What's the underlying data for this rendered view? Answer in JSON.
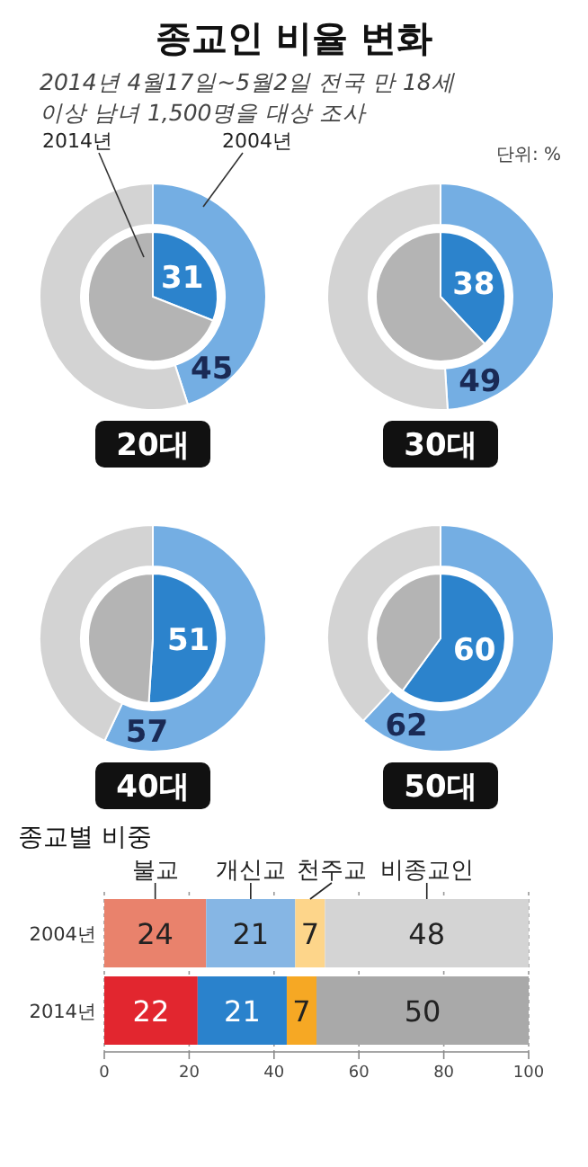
{
  "chart_data": [
    {
      "type": "other",
      "title": "종교인 비율 변화",
      "subtitle": "2014년 4월17일~5월2일 전국 만 18세 이상 남녀 1,500명을 대상 조사",
      "annotations": [
        "단위: %"
      ]
    },
    {
      "type": "donut",
      "title": "20대",
      "categories": [
        null,
        null
      ],
      "series": [
        {
          "name": "2004년",
          "colors": [
            "#74aee3",
            "#d3d3d3"
          ],
          "values": [
            45,
            55
          ],
          "value_labels": [
            "45",
            null
          ]
        },
        {
          "name": "2014년",
          "colors": [
            "#2c83cc",
            "#b4b4b4"
          ],
          "values": [
            31,
            69
          ],
          "value_labels": [
            "31",
            null
          ]
        }
      ]
    },
    {
      "type": "donut",
      "title": "30대",
      "categories": [
        null,
        null
      ],
      "series": [
        {
          "colors": [
            "#74aee3",
            "#d3d3d3"
          ],
          "values": [
            49,
            51
          ],
          "value_labels": [
            "49",
            null
          ]
        },
        {
          "colors": [
            "#2c83cc",
            "#b4b4b4"
          ],
          "values": [
            38,
            62
          ],
          "value_labels": [
            "38",
            null
          ]
        }
      ]
    },
    {
      "type": "donut",
      "title": "40대",
      "categories": [
        null,
        null
      ],
      "series": [
        {
          "colors": [
            "#74aee3",
            "#d3d3d3"
          ],
          "values": [
            57,
            43
          ],
          "value_labels": [
            "57",
            null
          ]
        },
        {
          "colors": [
            "#2c83cc",
            "#b4b4b4"
          ],
          "values": [
            51,
            49
          ],
          "value_labels": [
            "51",
            null
          ]
        }
      ]
    },
    {
      "type": "donut",
      "title": "50대",
      "categories": [
        null,
        null
      ],
      "series": [
        {
          "colors": [
            "#74aee3",
            "#d3d3d3"
          ],
          "values": [
            62,
            38
          ],
          "value_labels": [
            "62",
            null
          ]
        },
        {
          "colors": [
            "#2c83cc",
            "#b4b4b4"
          ],
          "values": [
            60,
            40
          ],
          "value_labels": [
            "60",
            null
          ]
        }
      ]
    },
    {
      "type": "bar",
      "title": "종교별 비중",
      "orientation": "horizontal",
      "stacked": true,
      "categories": [
        "2004년",
        "2014년"
      ],
      "xlim": [
        0,
        100
      ],
      "xticks": [
        0,
        20,
        40,
        60,
        80,
        100
      ],
      "grid": "x",
      "data_labels": true,
      "series": [
        {
          "name": "불교",
          "colors": [
            "#e9826c",
            "#e2262f"
          ],
          "values": [
            24,
            22
          ]
        },
        {
          "name": "개신교",
          "colors": [
            "#86b6e4",
            "#2a82cc"
          ],
          "values": [
            21,
            21
          ]
        },
        {
          "name": "천주교",
          "colors": [
            "#fdd58a",
            "#f6a824"
          ],
          "values": [
            7,
            7
          ]
        },
        {
          "name": "비종교인",
          "colors": [
            "#d4d4d4",
            "#a9a9a9"
          ],
          "values": [
            48,
            50
          ]
        }
      ]
    }
  ]
}
